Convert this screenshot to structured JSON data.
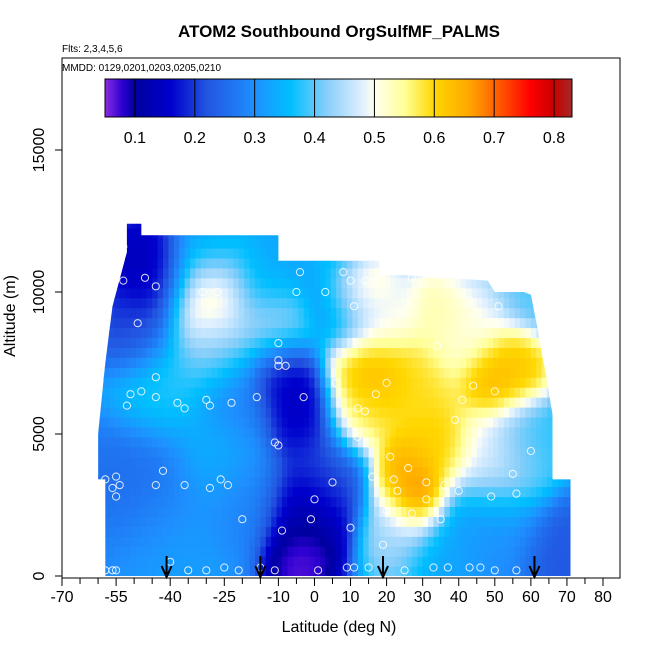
{
  "chart_data": {
    "type": "heatmap",
    "title": "ATOM2 Southbound OrgSulfMF_PALMS",
    "subtitle_flights": "Flts: 2,3,4,5,6",
    "subtitle_dates": "MMDD: 0129,0201,0203,0205,0210",
    "xlabel": "Latitude (deg N)",
    "ylabel": "Altitude (m)",
    "xlim": [
      -70,
      85
    ],
    "ylim": [
      0,
      17500
    ],
    "x_ticks": [
      -70,
      -55,
      -40,
      -25,
      -10,
      0,
      10,
      20,
      30,
      40,
      50,
      60,
      70,
      80
    ],
    "x_minor_ticks": [
      -65,
      -60,
      -50,
      -45,
      -35,
      -30,
      -20,
      -15,
      -5,
      5,
      15,
      25,
      35,
      45,
      55,
      65,
      75,
      85
    ],
    "y_ticks": [
      0,
      5000,
      10000,
      15000
    ],
    "colorbar": {
      "vmin": 0.05,
      "vmax": 0.83,
      "ticks": [
        0.1,
        0.2,
        0.3,
        0.4,
        0.5,
        0.6,
        0.7,
        0.8
      ],
      "stops": [
        [
          0.05,
          "#8b2be2"
        ],
        [
          0.08,
          "#2a00d0"
        ],
        [
          0.1,
          "#0000a0"
        ],
        [
          0.16,
          "#0000cd"
        ],
        [
          0.22,
          "#2255e0"
        ],
        [
          0.3,
          "#1e90ff"
        ],
        [
          0.36,
          "#00bfff"
        ],
        [
          0.42,
          "#87cefa"
        ],
        [
          0.48,
          "#e0f0ff"
        ],
        [
          0.5,
          "#fffff0"
        ],
        [
          0.55,
          "#ffff99"
        ],
        [
          0.6,
          "#ffd700"
        ],
        [
          0.66,
          "#ffa500"
        ],
        [
          0.72,
          "#ff4500"
        ],
        [
          0.76,
          "#ff0000"
        ],
        [
          0.8,
          "#c80000"
        ],
        [
          0.83,
          "#a52a2a"
        ]
      ]
    },
    "arrows_latitude": [
      -41,
      -15,
      19,
      61
    ],
    "hotspots": [
      {
        "lat": -45,
        "alt": 10500,
        "v": 0.12,
        "r": 9
      },
      {
        "lat": -50,
        "alt": 8500,
        "v": 0.2,
        "r": 8
      },
      {
        "lat": -43,
        "alt": 6500,
        "v": 0.38,
        "r": 10
      },
      {
        "lat": -48,
        "alt": 3000,
        "v": 0.25,
        "r": 12
      },
      {
        "lat": -40,
        "alt": 1000,
        "v": 0.32,
        "r": 12
      },
      {
        "lat": -30,
        "alt": 9800,
        "v": 0.58,
        "r": 10
      },
      {
        "lat": -30,
        "alt": 11500,
        "v": 0.3,
        "r": 8
      },
      {
        "lat": -28,
        "alt": 7800,
        "v": 0.42,
        "r": 9
      },
      {
        "lat": -22,
        "alt": 6000,
        "v": 0.27,
        "r": 9
      },
      {
        "lat": -28,
        "alt": 4200,
        "v": 0.35,
        "r": 10
      },
      {
        "lat": -20,
        "alt": 2500,
        "v": 0.28,
        "r": 10
      },
      {
        "lat": -15,
        "alt": 10500,
        "v": 0.33,
        "r": 10
      },
      {
        "lat": -12,
        "alt": 8500,
        "v": 0.46,
        "r": 8
      },
      {
        "lat": -10,
        "alt": 7000,
        "v": 0.12,
        "r": 7
      },
      {
        "lat": -5,
        "alt": 5500,
        "v": 0.14,
        "r": 8
      },
      {
        "lat": -3,
        "alt": 2000,
        "v": 0.1,
        "r": 9
      },
      {
        "lat": -5,
        "alt": 500,
        "v": 0.05,
        "r": 7
      },
      {
        "lat": 3,
        "alt": 3500,
        "v": 0.22,
        "r": 9
      },
      {
        "lat": 5,
        "alt": 11500,
        "v": 0.35,
        "r": 8
      },
      {
        "lat": 8,
        "alt": 9500,
        "v": 0.3,
        "r": 9
      },
      {
        "lat": 12,
        "alt": 10000,
        "v": 0.63,
        "r": 7
      },
      {
        "lat": 15,
        "alt": 7000,
        "v": 0.65,
        "r": 9
      },
      {
        "lat": 12,
        "alt": 5500,
        "v": 0.58,
        "r": 7
      },
      {
        "lat": 20,
        "alt": 9000,
        "v": 0.5,
        "r": 7
      },
      {
        "lat": 28,
        "alt": 6500,
        "v": 0.6,
        "r": 9
      },
      {
        "lat": 24,
        "alt": 3500,
        "v": 0.66,
        "r": 7
      },
      {
        "lat": 28,
        "alt": 2500,
        "v": 0.76,
        "r": 6
      },
      {
        "lat": 33,
        "alt": 4500,
        "v": 0.62,
        "r": 8
      },
      {
        "lat": 23,
        "alt": 1500,
        "v": 0.45,
        "r": 8
      },
      {
        "lat": 35,
        "alt": 1000,
        "v": 0.33,
        "r": 9
      },
      {
        "lat": 36,
        "alt": 9200,
        "v": 0.56,
        "r": 8
      },
      {
        "lat": 42,
        "alt": 8500,
        "v": 0.5,
        "r": 9
      },
      {
        "lat": 48,
        "alt": 6800,
        "v": 0.66,
        "r": 7
      },
      {
        "lat": 55,
        "alt": 7200,
        "v": 0.63,
        "r": 7
      },
      {
        "lat": 50,
        "alt": 4000,
        "v": 0.5,
        "r": 10
      },
      {
        "lat": 58,
        "alt": 4500,
        "v": 0.37,
        "r": 8
      },
      {
        "lat": 50,
        "alt": 1500,
        "v": 0.3,
        "r": 10
      },
      {
        "lat": 60,
        "alt": 10000,
        "v": 0.4,
        "r": 8
      },
      {
        "lat": 68,
        "alt": 500,
        "v": 0.22,
        "r": 9
      },
      {
        "lat": 45,
        "alt": 11000,
        "v": 0.44,
        "r": 9
      }
    ],
    "points": [
      [
        -58,
        3400
      ],
      [
        -56,
        3100
      ],
      [
        -55,
        3500
      ],
      [
        -54,
        3200
      ],
      [
        -55,
        2800
      ],
      [
        -55,
        200
      ],
      [
        -56,
        200
      ],
      [
        -53,
        11600
      ],
      [
        -53,
        10400
      ],
      [
        -47,
        10500
      ],
      [
        -44,
        10200
      ],
      [
        -49,
        8900
      ],
      [
        -44,
        7000
      ],
      [
        -51,
        6400
      ],
      [
        -52,
        6000
      ],
      [
        -48,
        6500
      ],
      [
        -44,
        6300
      ],
      [
        -38,
        6100
      ],
      [
        -36,
        5900
      ],
      [
        -30,
        6200
      ],
      [
        -29,
        6000
      ],
      [
        -36,
        3200
      ],
      [
        -29,
        3100
      ],
      [
        -26,
        3400
      ],
      [
        -24,
        3200
      ],
      [
        -44,
        3200
      ],
      [
        -42,
        3700
      ],
      [
        -31,
        10000
      ],
      [
        -27,
        10000
      ],
      [
        -23,
        6100
      ],
      [
        -16,
        6300
      ],
      [
        -11,
        4700
      ],
      [
        -10,
        4600
      ],
      [
        -10,
        7600
      ],
      [
        -10,
        7400
      ],
      [
        -10,
        8200
      ],
      [
        -8,
        7400
      ],
      [
        -4,
        10700
      ],
      [
        -5,
        10000
      ],
      [
        -3,
        6300
      ],
      [
        0,
        2700
      ],
      [
        -1,
        2000
      ],
      [
        -9,
        1600
      ],
      [
        -20,
        2000
      ],
      [
        -40,
        500
      ],
      [
        -35,
        200
      ],
      [
        -30,
        200
      ],
      [
        -21,
        200
      ],
      [
        -11,
        200
      ],
      [
        1,
        200
      ],
      [
        5,
        3300
      ],
      [
        10,
        1700
      ],
      [
        11,
        300
      ],
      [
        15,
        300
      ],
      [
        8,
        10700
      ],
      [
        10,
        10400
      ],
      [
        14,
        10400
      ],
      [
        17,
        10400
      ],
      [
        11,
        9500
      ],
      [
        3,
        10000
      ],
      [
        6,
        6800
      ],
      [
        12,
        5900
      ],
      [
        14,
        5800
      ],
      [
        17,
        6400
      ],
      [
        20,
        6800
      ],
      [
        12,
        4900
      ],
      [
        21,
        4200
      ],
      [
        23,
        3000
      ],
      [
        22,
        3400
      ],
      [
        26,
        3800
      ],
      [
        31,
        3300
      ],
      [
        36,
        3200
      ],
      [
        31,
        2700
      ],
      [
        16,
        3500
      ],
      [
        20,
        2300
      ],
      [
        27,
        2200
      ],
      [
        35,
        2000
      ],
      [
        19,
        1100
      ],
      [
        25,
        200
      ],
      [
        33,
        300
      ],
      [
        27,
        10500
      ],
      [
        30,
        10300
      ],
      [
        35,
        10600
      ],
      [
        43,
        9700
      ],
      [
        51,
        9500
      ],
      [
        34,
        8100
      ],
      [
        44,
        6700
      ],
      [
        50,
        6500
      ],
      [
        41,
        6200
      ],
      [
        39,
        5500
      ],
      [
        55,
        3600
      ],
      [
        60,
        4400
      ],
      [
        56,
        2900
      ],
      [
        49,
        2800
      ],
      [
        40,
        3000
      ],
      [
        46,
        300
      ],
      [
        50,
        200
      ],
      [
        56,
        200
      ],
      [
        -25,
        300
      ],
      [
        -15,
        300
      ],
      [
        -58,
        200
      ],
      [
        9,
        300
      ],
      [
        37,
        300
      ],
      [
        43,
        300
      ]
    ]
  }
}
